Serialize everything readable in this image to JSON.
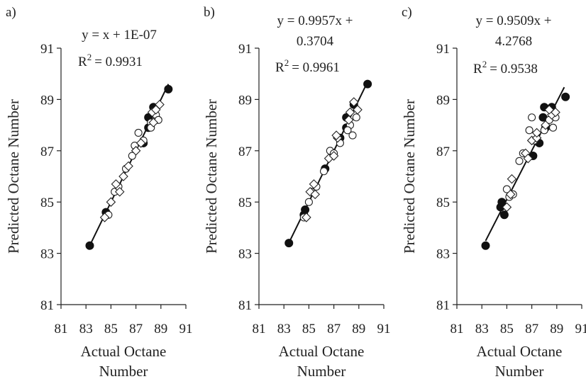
{
  "chart_data": [
    {
      "type": "scatter",
      "panel_label": "a)",
      "equation_line1": "y = x + 1E-07",
      "equation_line2": "",
      "r2_value": "= 0.9931",
      "xlabel_line1": "Actual Octane",
      "xlabel_line2": "Number",
      "ylabel": "Predicted Octane Number",
      "xlim": [
        81,
        91
      ],
      "ylim": [
        81,
        91
      ],
      "x_ticks": [
        "81",
        "83",
        "85",
        "87",
        "89",
        "91"
      ],
      "y_ticks": [
        "81",
        "83",
        "85",
        "87",
        "89",
        "91"
      ],
      "grid": false,
      "trendline": {
        "slope": 1.0,
        "intercept": 1e-07,
        "x_range": [
          83.3,
          89.6
        ]
      },
      "series": [
        {
          "marker": "filled-circle",
          "points": [
            [
              83.3,
              83.3
            ],
            [
              84.6,
              84.6
            ],
            [
              88.0,
              88.3
            ],
            [
              88.4,
              88.7
            ],
            [
              87.6,
              87.3
            ],
            [
              89.6,
              89.4
            ],
            [
              88.0,
              87.9
            ]
          ]
        },
        {
          "marker": "open-circle",
          "points": [
            [
              84.8,
              84.5
            ],
            [
              85.3,
              85.4
            ],
            [
              86.2,
              86.3
            ],
            [
              86.7,
              86.8
            ],
            [
              87.2,
              87.7
            ],
            [
              87.6,
              87.4
            ],
            [
              88.2,
              88.1
            ],
            [
              88.6,
              88.4
            ],
            [
              88.8,
              88.2
            ],
            [
              88.2,
              87.9
            ],
            [
              85.6,
              85.6
            ],
            [
              86.9,
              87.2
            ]
          ]
        },
        {
          "marker": "open-diamond",
          "points": [
            [
              84.5,
              84.4
            ],
            [
              85.0,
              85.0
            ],
            [
              85.4,
              85.7
            ],
            [
              86.4,
              86.4
            ],
            [
              87.0,
              87.0
            ],
            [
              87.4,
              87.3
            ],
            [
              88.3,
              88.5
            ],
            [
              88.6,
              88.6
            ],
            [
              88.9,
              88.8
            ],
            [
              85.7,
              85.4
            ],
            [
              88.4,
              88.1
            ],
            [
              86.0,
              86.0
            ]
          ]
        }
      ]
    },
    {
      "type": "scatter",
      "panel_label": "b)",
      "equation_line1": "y = 0.9957x +",
      "equation_line2": "0.3704",
      "r2_value": "= 0.9961",
      "xlabel_line1": "Actual Octane",
      "xlabel_line2": "Number",
      "ylabel": "Predicted Octane Number",
      "xlim": [
        81,
        91
      ],
      "ylim": [
        81,
        91
      ],
      "x_ticks": [
        "81",
        "83",
        "85",
        "87",
        "89",
        "91"
      ],
      "y_ticks": [
        "81",
        "83",
        "85",
        "87",
        "89",
        "91"
      ],
      "grid": false,
      "trendline": {
        "slope": 0.9957,
        "intercept": 0.3704,
        "x_range": [
          83.3,
          89.6
        ]
      },
      "series": [
        {
          "marker": "filled-circle",
          "points": [
            [
              83.4,
              83.4
            ],
            [
              84.6,
              84.5
            ],
            [
              84.7,
              84.7
            ],
            [
              86.3,
              86.3
            ],
            [
              87.5,
              87.5
            ],
            [
              88.0,
              88.3
            ],
            [
              88.6,
              88.8
            ],
            [
              89.7,
              89.6
            ],
            [
              88.0,
              87.9
            ]
          ]
        },
        {
          "marker": "open-circle",
          "points": [
            [
              84.6,
              84.4
            ],
            [
              85.0,
              85.0
            ],
            [
              85.6,
              85.6
            ],
            [
              86.2,
              86.2
            ],
            [
              86.7,
              87.0
            ],
            [
              87.0,
              86.9
            ],
            [
              87.5,
              87.3
            ],
            [
              88.3,
              88.0
            ],
            [
              88.5,
              87.6
            ],
            [
              88.8,
              88.3
            ],
            [
              88.1,
              87.8
            ],
            [
              85.2,
              85.4
            ]
          ]
        },
        {
          "marker": "open-diamond",
          "points": [
            [
              84.8,
              84.4
            ],
            [
              85.1,
              85.4
            ],
            [
              85.4,
              85.7
            ],
            [
              86.6,
              86.7
            ],
            [
              87.0,
              86.8
            ],
            [
              87.3,
              87.5
            ],
            [
              88.2,
              88.2
            ],
            [
              88.6,
              88.9
            ],
            [
              88.9,
              88.6
            ],
            [
              85.5,
              85.3
            ],
            [
              88.3,
              88.5
            ],
            [
              87.2,
              87.6
            ]
          ]
        }
      ]
    },
    {
      "type": "scatter",
      "panel_label": "c)",
      "equation_line1": "y = 0.9509x +",
      "equation_line2": "4.2768",
      "r2_value": "= 0.9538",
      "xlabel_line1": "Actual Octane",
      "xlabel_line2": "Number",
      "ylabel": "Predicted Octane Number",
      "xlim": [
        81,
        91
      ],
      "ylim": [
        81,
        91
      ],
      "x_ticks": [
        "81",
        "83",
        "85",
        "87",
        "89",
        "91"
      ],
      "y_ticks": [
        "81",
        "83",
        "85",
        "87",
        "89",
        "91"
      ],
      "grid": false,
      "trendline": {
        "slope": 0.9509,
        "intercept": 4.2768,
        "x_range": [
          83.3,
          89.6
        ]
      },
      "series": [
        {
          "marker": "filled-circle",
          "points": [
            [
              83.3,
              83.3
            ],
            [
              84.5,
              84.8
            ],
            [
              84.6,
              85.0
            ],
            [
              84.8,
              84.5
            ],
            [
              87.1,
              86.8
            ],
            [
              87.6,
              87.3
            ],
            [
              87.9,
              88.3
            ],
            [
              88.0,
              88.7
            ],
            [
              88.6,
              88.7
            ],
            [
              89.7,
              89.1
            ],
            [
              88.1,
              87.9
            ]
          ]
        },
        {
          "marker": "open-circle",
          "points": [
            [
              85.0,
              85.5
            ],
            [
              85.2,
              85.2
            ],
            [
              86.0,
              86.6
            ],
            [
              86.3,
              86.9
            ],
            [
              86.8,
              87.8
            ],
            [
              87.0,
              88.3
            ],
            [
              87.2,
              87.4
            ],
            [
              88.0,
              87.8
            ],
            [
              88.4,
              88.2
            ],
            [
              88.7,
              87.9
            ],
            [
              88.9,
              88.3
            ],
            [
              85.5,
              85.3
            ]
          ]
        },
        {
          "marker": "open-diamond",
          "points": [
            [
              85.0,
              84.8
            ],
            [
              85.3,
              85.3
            ],
            [
              85.4,
              85.9
            ],
            [
              86.5,
              86.9
            ],
            [
              87.0,
              87.4
            ],
            [
              87.4,
              87.5
            ],
            [
              88.1,
              88.0
            ],
            [
              88.6,
              88.4
            ],
            [
              88.9,
              88.5
            ],
            [
              87.4,
              87.7
            ],
            [
              88.4,
              88.6
            ],
            [
              86.7,
              86.7
            ]
          ]
        }
      ]
    }
  ]
}
